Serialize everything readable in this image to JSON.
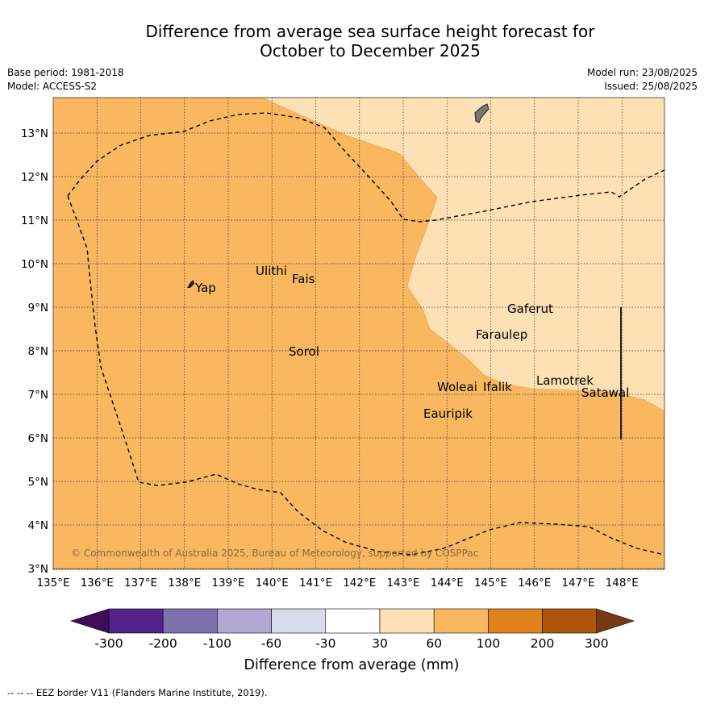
{
  "title": {
    "line1": "Difference from average sea surface height forecast for",
    "line2": "October to December 2025"
  },
  "meta": {
    "base_period": "Base period: 1981-2018",
    "model": "Model: ACCESS-S2",
    "model_run": "Model run: 23/08/2025",
    "issued": "Issued: 25/08/2025"
  },
  "map": {
    "lon_labels": [
      "135°E",
      "136°E",
      "137°E",
      "138°E",
      "139°E",
      "140°E",
      "141°E",
      "142°E",
      "143°E",
      "144°E",
      "145°E",
      "146°E",
      "147°E",
      "148°E"
    ],
    "lat_labels": [
      "13°N",
      "12°N",
      "11°N",
      "10°N",
      "9°N",
      "8°N",
      "7°N",
      "6°N",
      "5°N",
      "4°N",
      "3°N"
    ],
    "places": [
      {
        "name": "Yap"
      },
      {
        "name": "Ulithi"
      },
      {
        "name": "Fais"
      },
      {
        "name": "Sorol"
      },
      {
        "name": "Gaferut"
      },
      {
        "name": "Faraulep"
      },
      {
        "name": "Woleai"
      },
      {
        "name": "Ifalik"
      },
      {
        "name": "Lamotrek"
      },
      {
        "name": "Satawal"
      },
      {
        "name": "Eauripik"
      }
    ],
    "copyright": "© Commonwealth of Australia 2025, Bureau of Meteorology, supported by COSPPac",
    "colors": {
      "band_60_100": "#f9b760",
      "band_30_60": "#fde0b4",
      "land": "#777777"
    }
  },
  "colorbar": {
    "ticks": [
      "-300",
      "-200",
      "-100",
      "-60",
      "-30",
      "30",
      "60",
      "100",
      "200",
      "300"
    ],
    "label": "Difference from average (mm)",
    "colors": [
      "#3d0d57",
      "#52218a",
      "#7e72ae",
      "#b1a9d3",
      "#d9d9ec",
      "#ffffff",
      "#fde0b4",
      "#f9b760",
      "#e0821c",
      "#ad560a",
      "#773a10"
    ]
  },
  "footer": "--  --  -- EEZ border V11 (Flanders Marine Institute, 2019)."
}
